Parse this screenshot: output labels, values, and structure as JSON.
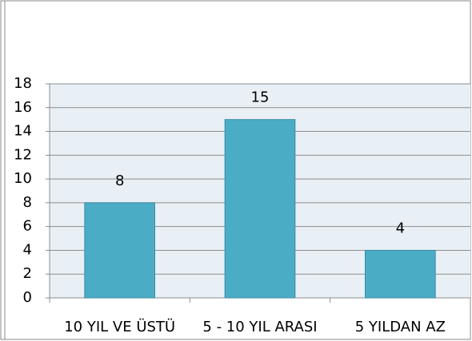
{
  "chart_data": {
    "type": "bar",
    "categories": [
      "10 YIL VE ÜSTÜ",
      "5 - 10 YIL ARASI",
      "5 YILDAN AZ"
    ],
    "values": [
      8,
      15,
      4
    ],
    "color": "#4bacc6",
    "ylim": [
      0,
      18
    ],
    "yticks": [
      0,
      2,
      4,
      6,
      8,
      10,
      12,
      14,
      16,
      18
    ],
    "grid": true
  }
}
